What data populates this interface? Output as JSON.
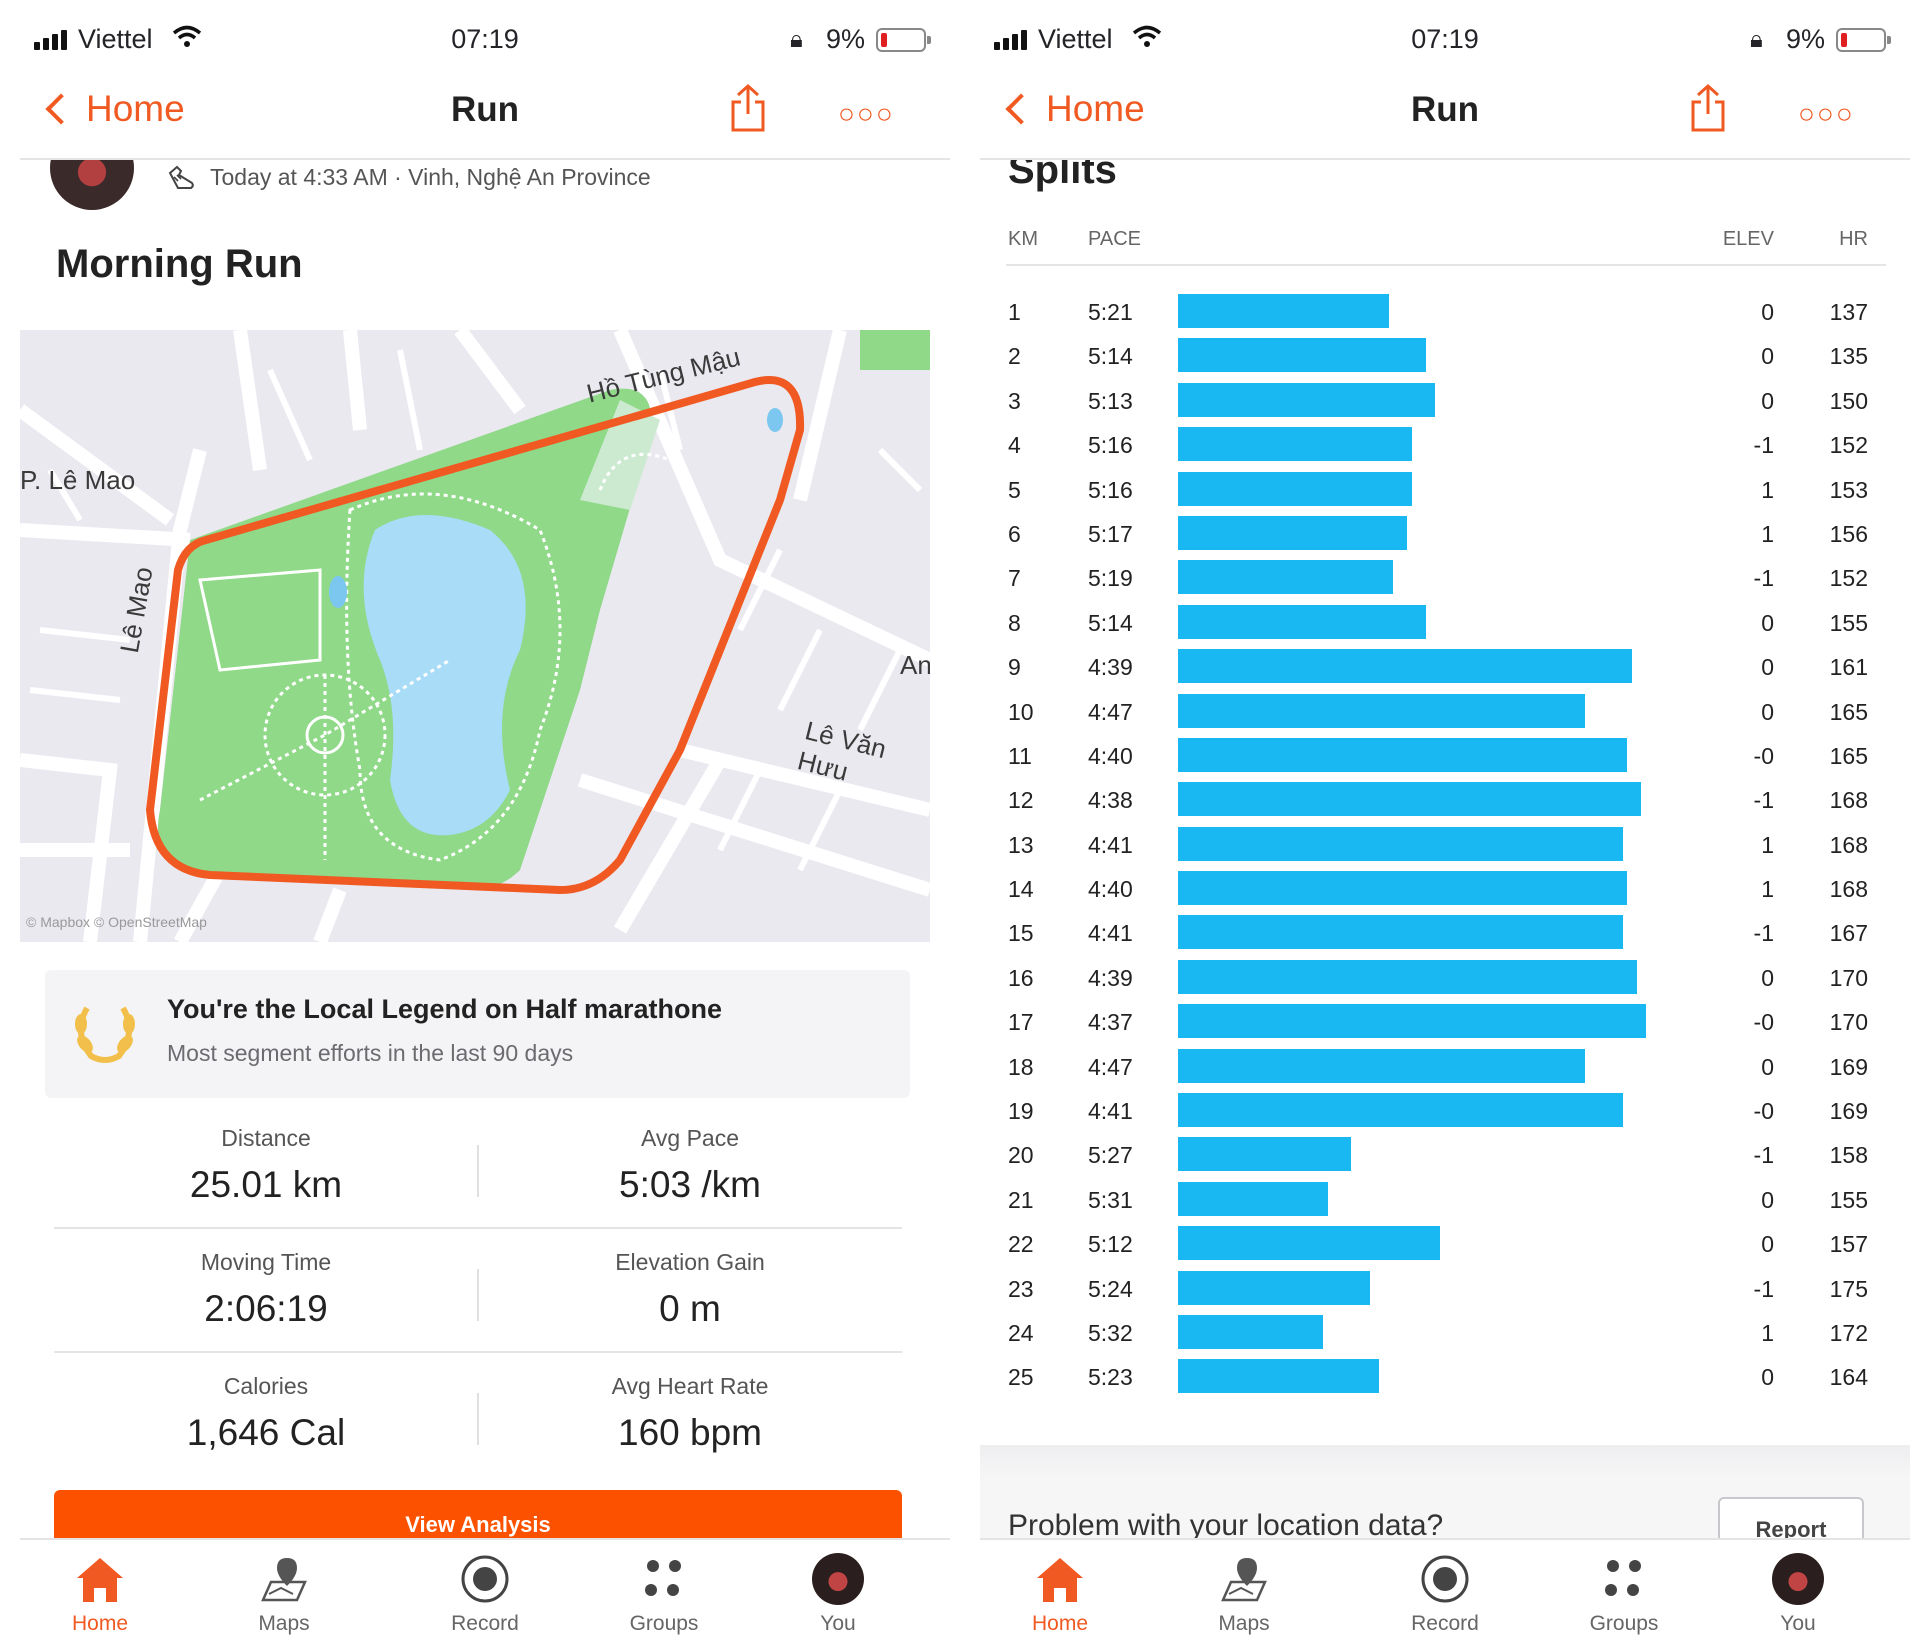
{
  "left": {
    "status": {
      "carrier": "Viettel",
      "time": "07:19",
      "battery": "9%"
    },
    "nav": {
      "back": "Home",
      "title": "Run"
    },
    "activity": {
      "meta": "Today at 4:33 AM · Vinh, Nghệ An Province",
      "title": "Morning Run"
    },
    "map": {
      "labels": {
        "a": "P. Lê Mao",
        "b": "Lê Mao",
        "c": "Hồ Tùng Mậu",
        "d": "Lê Văn Hưu",
        "e": "An"
      },
      "route_color": "#f05a22",
      "attribution": "© Mapbox © OpenStreetMap"
    },
    "legend": {
      "title": "You're the Local Legend on Half marathone",
      "subtitle": "Most segment efforts in the last 90 days"
    },
    "stats": [
      {
        "l_label": "Distance",
        "l_value": "25.01 km",
        "r_label": "Avg Pace",
        "r_value": "5:03 /km"
      },
      {
        "l_label": "Moving Time",
        "l_value": "2:06:19",
        "r_label": "Elevation Gain",
        "r_value": "0 m"
      },
      {
        "l_label": "Calories",
        "l_value": "1,646 Cal",
        "r_label": "Avg Heart Rate",
        "r_value": "160 bpm"
      }
    ],
    "button": "View Analysis"
  },
  "right": {
    "status": {
      "carrier": "Viettel",
      "time": "07:19",
      "battery": "9%"
    },
    "nav": {
      "back": "Home",
      "title": "Run"
    },
    "splits_title": "Splits",
    "columns": {
      "km": "KM",
      "pace": "PACE",
      "elev": "ELEV",
      "hr": "HR"
    },
    "splits": [
      {
        "km": "1",
        "pace": "5:21",
        "elev": "0",
        "hr": "137",
        "speed": 0.45
      },
      {
        "km": "2",
        "pace": "5:14",
        "elev": "0",
        "hr": "135",
        "speed": 0.53
      },
      {
        "km": "3",
        "pace": "5:13",
        "elev": "0",
        "hr": "150",
        "speed": 0.55
      },
      {
        "km": "4",
        "pace": "5:16",
        "elev": "-1",
        "hr": "152",
        "speed": 0.5
      },
      {
        "km": "5",
        "pace": "5:16",
        "elev": "1",
        "hr": "153",
        "speed": 0.5
      },
      {
        "km": "6",
        "pace": "5:17",
        "elev": "1",
        "hr": "156",
        "speed": 0.49
      },
      {
        "km": "7",
        "pace": "5:19",
        "elev": "-1",
        "hr": "152",
        "speed": 0.46
      },
      {
        "km": "8",
        "pace": "5:14",
        "elev": "0",
        "hr": "155",
        "speed": 0.53
      },
      {
        "km": "9",
        "pace": "4:39",
        "elev": "0",
        "hr": "161",
        "speed": 0.97
      },
      {
        "km": "10",
        "pace": "4:47",
        "elev": "0",
        "hr": "165",
        "speed": 0.87
      },
      {
        "km": "11",
        "pace": "4:40",
        "elev": "-0",
        "hr": "165",
        "speed": 0.96
      },
      {
        "km": "12",
        "pace": "4:38",
        "elev": "-1",
        "hr": "168",
        "speed": 0.99
      },
      {
        "km": "13",
        "pace": "4:41",
        "elev": "1",
        "hr": "168",
        "speed": 0.95
      },
      {
        "km": "14",
        "pace": "4:40",
        "elev": "1",
        "hr": "168",
        "speed": 0.96
      },
      {
        "km": "15",
        "pace": "4:41",
        "elev": "-1",
        "hr": "167",
        "speed": 0.95
      },
      {
        "km": "16",
        "pace": "4:39",
        "elev": "0",
        "hr": "170",
        "speed": 0.98
      },
      {
        "km": "17",
        "pace": "4:37",
        "elev": "-0",
        "hr": "170",
        "speed": 1.0
      },
      {
        "km": "18",
        "pace": "4:47",
        "elev": "0",
        "hr": "169",
        "speed": 0.87
      },
      {
        "km": "19",
        "pace": "4:41",
        "elev": "-0",
        "hr": "169",
        "speed": 0.95
      },
      {
        "km": "20",
        "pace": "5:27",
        "elev": "-1",
        "hr": "158",
        "speed": 0.37
      },
      {
        "km": "21",
        "pace": "5:31",
        "elev": "0",
        "hr": "155",
        "speed": 0.32
      },
      {
        "km": "22",
        "pace": "5:12",
        "elev": "0",
        "hr": "157",
        "speed": 0.56
      },
      {
        "km": "23",
        "pace": "5:24",
        "elev": "-1",
        "hr": "175",
        "speed": 0.41
      },
      {
        "km": "24",
        "pace": "5:32",
        "elev": "1",
        "hr": "172",
        "speed": 0.31
      },
      {
        "km": "25",
        "pace": "5:23",
        "elev": "0",
        "hr": "164",
        "speed": 0.43
      }
    ],
    "problem": {
      "text": "Problem with your location data?",
      "button": "Report"
    }
  },
  "tabs": [
    {
      "label": "Home",
      "icon": "home-icon",
      "active": true
    },
    {
      "label": "Maps",
      "icon": "maps-icon",
      "active": false
    },
    {
      "label": "Record",
      "icon": "record-icon",
      "active": false
    },
    {
      "label": "Groups",
      "icon": "groups-icon",
      "active": false
    },
    {
      "label": "You",
      "icon": "profile-avatar",
      "active": false
    }
  ],
  "colors": {
    "brand": "#fc5200",
    "accent": "#f05a22",
    "split_bar": "#1ab8f3",
    "park": "#8fd988",
    "lake": "#a9dcf7"
  }
}
